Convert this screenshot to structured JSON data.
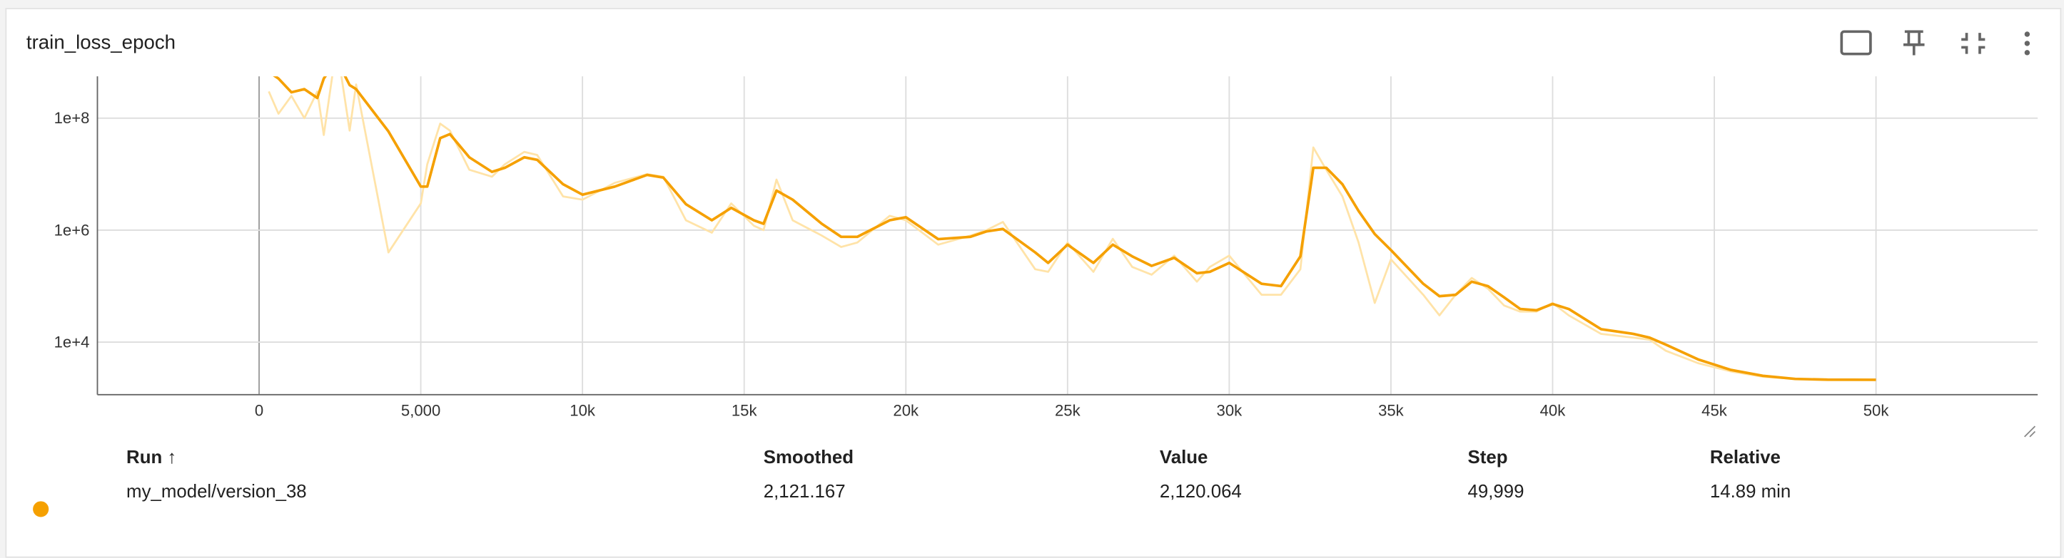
{
  "title": "train_loss_epoch",
  "chart_data": {
    "type": "line",
    "log_y": true,
    "grid": true,
    "xlim": [
      -5000,
      55000
    ],
    "ylim": [
      1150,
      560000000
    ],
    "xticks": [
      0,
      {
        "value": 5000,
        "label": "5,000"
      },
      {
        "value": 10000,
        "label": "10k"
      },
      {
        "value": 15000,
        "label": "15k"
      },
      {
        "value": 20000,
        "label": "20k"
      },
      {
        "value": 25000,
        "label": "25k"
      },
      {
        "value": 30000,
        "label": "30k"
      },
      {
        "value": 35000,
        "label": "35k"
      },
      {
        "value": 40000,
        "label": "40k"
      },
      {
        "value": 45000,
        "label": "45k"
      },
      {
        "value": 50000,
        "label": "50k"
      }
    ],
    "yticks": [
      {
        "value": 10000,
        "label": "1e+4"
      },
      {
        "value": 1000000,
        "label": "1e+6"
      },
      {
        "value": 100000000,
        "label": "1e+8"
      }
    ],
    "x": [
      300,
      600,
      1000,
      1400,
      1800,
      2000,
      2400,
      2800,
      3000,
      4000,
      5000,
      5200,
      5600,
      5900,
      6500,
      7200,
      7600,
      8200,
      8600,
      9400,
      10000,
      11000,
      12000,
      12500,
      13200,
      14000,
      14600,
      15300,
      15600,
      16000,
      16500,
      17400,
      18000,
      18500,
      19500,
      20000,
      21000,
      22000,
      22500,
      23000,
      24000,
      24400,
      25000,
      25800,
      26400,
      27000,
      27600,
      28300,
      29000,
      29400,
      30000,
      31000,
      31600,
      32200,
      32600,
      33000,
      33500,
      34000,
      34500,
      35000,
      36000,
      36500,
      37000,
      37500,
      38000,
      38500,
      39000,
      39500,
      40000,
      40500,
      41500,
      42500,
      43000,
      43500,
      44500,
      45500,
      46500,
      47500,
      48500,
      49999
    ],
    "series": [
      {
        "color": "#ffe3a8",
        "values": [
          300000000,
          120000000,
          250000000,
          100000000,
          300000000,
          50000000,
          2000000000,
          60000000,
          400000000,
          400000,
          3000000,
          15000000,
          80000000,
          60000000,
          12000000,
          9000000,
          15000000,
          25000000,
          22000000,
          4000000,
          3500000,
          7000000,
          10000000,
          9000000,
          1500000,
          900000,
          3000000,
          1200000,
          1000000,
          8000000,
          1500000,
          800000,
          500000,
          600000,
          1800000,
          1500000,
          550000,
          800000,
          1000000,
          1400000,
          200000,
          180000,
          600000,
          180000,
          700000,
          220000,
          160000,
          350000,
          120000,
          220000,
          350000,
          70000,
          70000,
          200000,
          30000000,
          12000000,
          4000000,
          600000,
          50000,
          300000,
          70000,
          30000,
          70000,
          140000,
          90000,
          45000,
          35000,
          35000,
          50000,
          30000,
          14000,
          12000,
          11000,
          7000,
          4200,
          3000,
          2400,
          2200,
          2120,
          2120.064
        ]
      },
      {
        "color": "#f5a000",
        "values": [
          670000000,
          510000000,
          290000000,
          330000000,
          230000000,
          510000000,
          1100000000,
          390000000,
          330000000,
          58000000,
          6000000,
          6000000,
          44000000,
          52000000,
          20000000,
          11000000,
          13000000,
          20000000,
          18000000,
          6600000,
          4300000,
          6000000,
          9700000,
          8700000,
          2900000,
          1500000,
          2500000,
          1500000,
          1300000,
          5100000,
          3500000,
          1300000,
          760000,
          760000,
          1500000,
          1700000,
          690000,
          760000,
          950000,
          1050000,
          400000,
          260000,
          550000,
          260000,
          550000,
          340000,
          230000,
          320000,
          170000,
          180000,
          260000,
          110000,
          100000,
          340000,
          13000000,
          13000000,
          6600000,
          2200000,
          850000,
          440000,
          110000,
          66000,
          70000,
          120000,
          100000,
          63000,
          39000,
          37000,
          48000,
          39000,
          17000,
          14000,
          12000,
          9000,
          4900,
          3200,
          2500,
          2200,
          2130,
          2121.167
        ]
      }
    ]
  },
  "table": {
    "headers": [
      "Run ↑",
      "Smoothed",
      "Value",
      "Step",
      "Relative"
    ],
    "rows": [
      [
        "my_model/version_38",
        "2,121.167",
        "2,120.064",
        "49,999",
        "14.89 min"
      ]
    ]
  }
}
